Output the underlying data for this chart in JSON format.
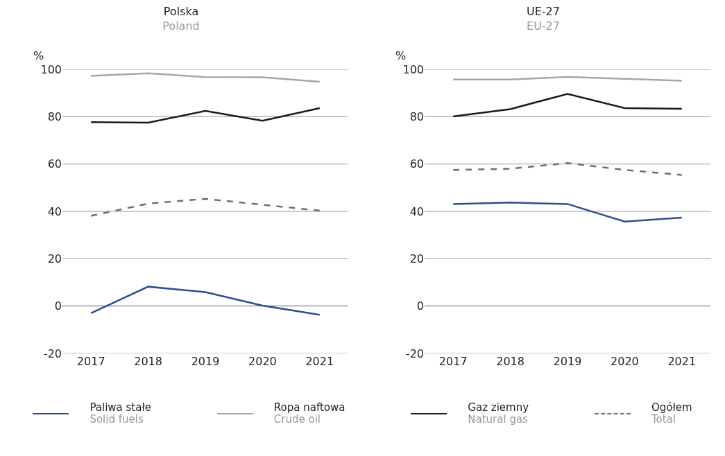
{
  "chart_data": [
    {
      "type": "line",
      "title": "Polska\nPoland",
      "ylabel": "%",
      "categories": [
        "2017",
        "2018",
        "2019",
        "2020",
        "2021"
      ],
      "ylim": [
        -20,
        100
      ],
      "yticks": [
        -20,
        0,
        20,
        40,
        60,
        80,
        100
      ],
      "grid": "y",
      "legend": "bottom",
      "line_style": "solid",
      "marker": "none",
      "series": [
        {
          "name": "Paliwa stałe\nSolid fuels",
          "color": "#2e4d8f",
          "values": [
            -3.0,
            8.2,
            5.9,
            0.2,
            -3.7
          ]
        },
        {
          "name": "Ropa naftowa\nCrude oil",
          "color": "#a6a6a8",
          "values": [
            97.2,
            98.3,
            96.7,
            96.6,
            94.7
          ]
        },
        {
          "name": "Gaz ziemny\nNatural gas",
          "color": "#1a1a1a",
          "values": [
            77.7,
            77.5,
            82.4,
            78.3,
            83.6
          ]
        },
        {
          "name": "Ogółem\nTotal",
          "color": "#6d6e71",
          "line_style": "dashed",
          "values": [
            38.1,
            43.3,
            45.3,
            42.8,
            40.3
          ]
        }
      ]
    },
    {
      "type": "line",
      "title": "UE-27\nEU-27",
      "ylabel": "%",
      "categories": [
        "2017",
        "2018",
        "2019",
        "2020",
        "2021"
      ],
      "ylim": [
        -20,
        100
      ],
      "yticks": [
        -20,
        0,
        20,
        40,
        60,
        80,
        100
      ],
      "grid": "y",
      "line_style": "solid",
      "marker": "none",
      "series": [
        {
          "color": "#2e4d8f",
          "values": [
            43.1,
            43.7,
            43.1,
            35.7,
            37.4
          ]
        },
        {
          "color": "#a6a6a8",
          "values": [
            95.7,
            95.7,
            96.8,
            96.0,
            95.2
          ]
        },
        {
          "color": "#1a1a1a",
          "values": [
            80.1,
            83.2,
            89.6,
            83.6,
            83.3
          ]
        },
        {
          "color": "#6d6e71",
          "line_style": "dashed",
          "values": [
            57.5,
            58.0,
            60.4,
            57.5,
            55.4
          ]
        }
      ]
    }
  ]
}
